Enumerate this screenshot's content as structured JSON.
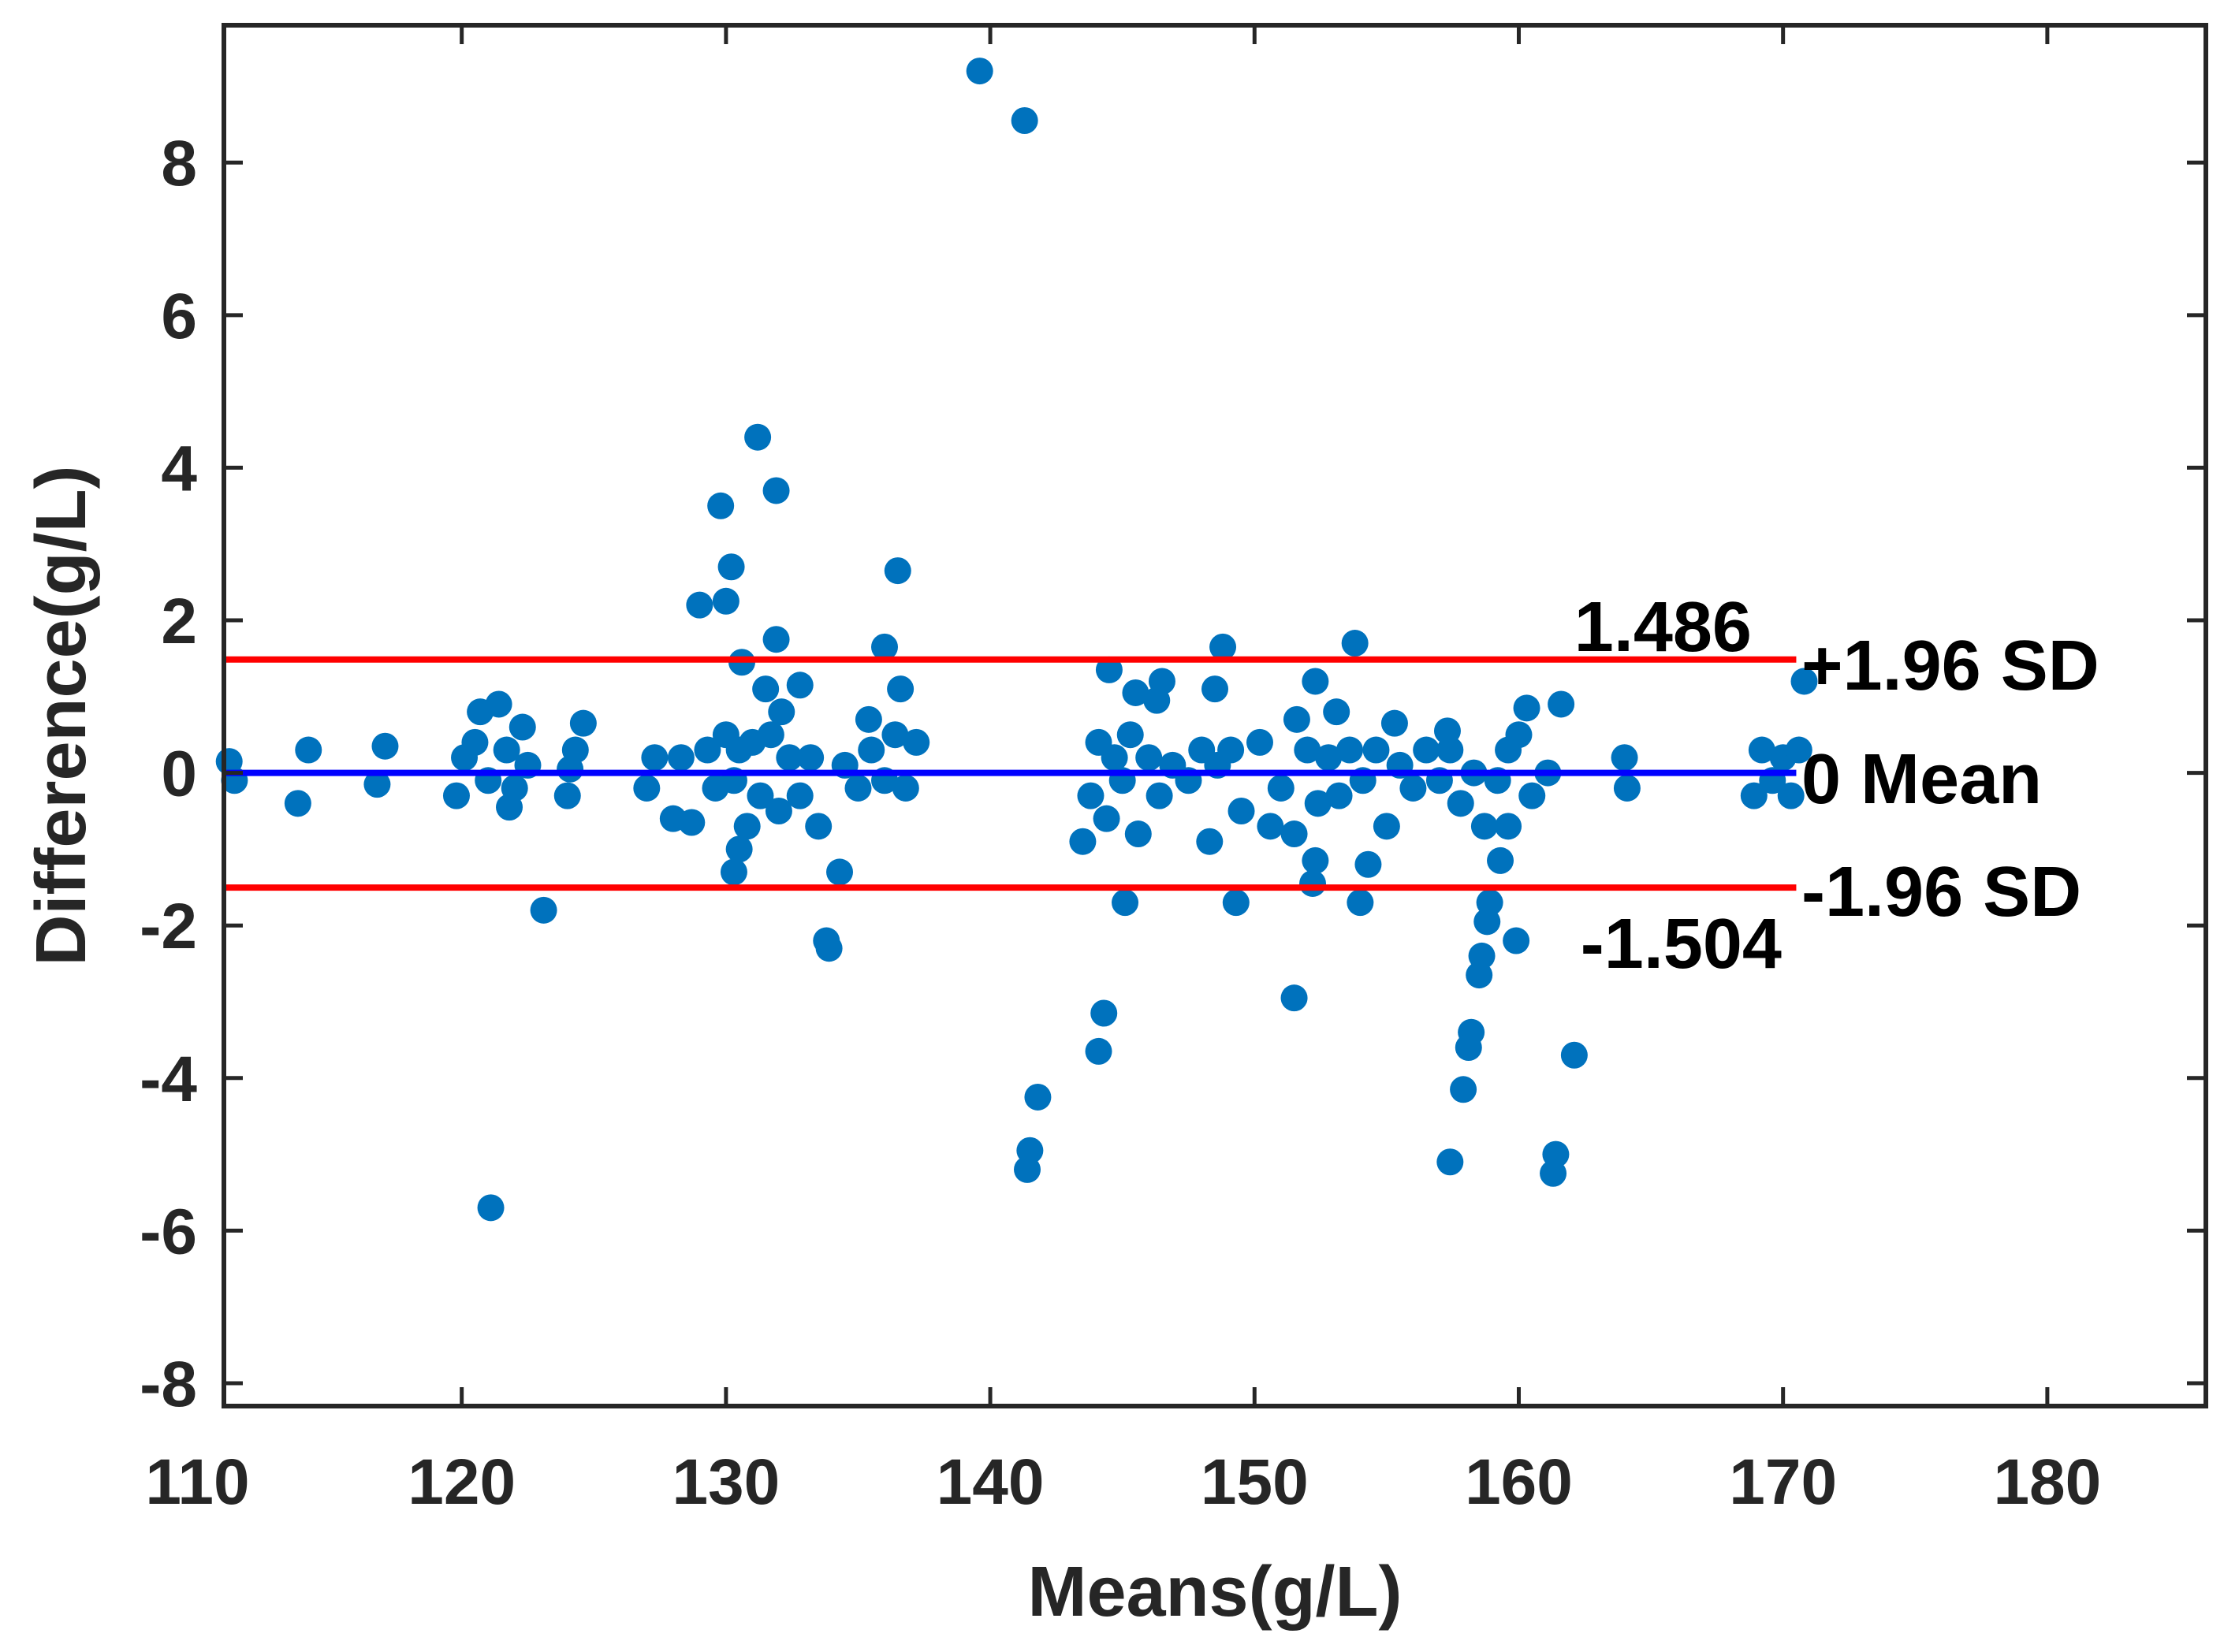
{
  "chart_data": {
    "type": "scatter",
    "title": "",
    "xlabel": "Means(g/L)",
    "ylabel": "Difference(g/L)",
    "xlim": [
      111,
      186
    ],
    "ylim": [
      -8.3,
      9.8
    ],
    "xticks": [
      110,
      120,
      130,
      140,
      150,
      160,
      170,
      180
    ],
    "yticks": [
      -8,
      -6,
      -4,
      -2,
      0,
      2,
      4,
      6,
      8
    ],
    "xtick_labels": [
      "110",
      "120",
      "130",
      "140",
      "150",
      "160",
      "170",
      "180"
    ],
    "ytick_labels": [
      "-8",
      "-6",
      "-4",
      "-2",
      "0",
      "2",
      "4",
      "6",
      "8"
    ],
    "grid": false,
    "colors": {
      "points": "#0072BD",
      "limits": "#FF0000",
      "mean": "#0000FF",
      "axes": "#262626"
    },
    "reference_lines": [
      {
        "name": "upper_limit",
        "y": 1.486,
        "x_range": [
          111,
          170.5
        ],
        "color": "#FF0000",
        "value_label": "1.486",
        "side_label": "+1.96 SD"
      },
      {
        "name": "mean",
        "y": 0,
        "x_range": [
          111,
          170.5
        ],
        "color": "#0000FF",
        "value_label": "",
        "side_label": "0 Mean"
      },
      {
        "name": "lower_limit",
        "y": -1.504,
        "x_range": [
          111,
          170.5
        ],
        "color": "#FF0000",
        "value_label": "-1.504",
        "side_label": "-1.96 SD"
      }
    ],
    "series": [
      {
        "name": "Differences",
        "points": [
          [
            139.6,
            9.2
          ],
          [
            141.3,
            8.55
          ],
          [
            131.2,
            4.4
          ],
          [
            131.9,
            3.7
          ],
          [
            129.8,
            3.5
          ],
          [
            130.2,
            2.7
          ],
          [
            136.5,
            2.65
          ],
          [
            129.0,
            2.2
          ],
          [
            130.0,
            2.25
          ],
          [
            131.9,
            1.75
          ],
          [
            136.0,
            1.65
          ],
          [
            148.8,
            1.65
          ],
          [
            153.8,
            1.7
          ],
          [
            130.6,
            1.45
          ],
          [
            144.5,
            1.35
          ],
          [
            146.5,
            1.2
          ],
          [
            170.8,
            1.2
          ],
          [
            131.5,
            1.1
          ],
          [
            132.8,
            1.15
          ],
          [
            136.6,
            1.1
          ],
          [
            152.3,
            1.2
          ],
          [
            148.5,
            1.1
          ],
          [
            145.5,
            1.05
          ],
          [
            146.3,
            0.95
          ],
          [
            161.6,
            0.9
          ],
          [
            160.3,
            0.85
          ],
          [
            121.4,
            0.9
          ],
          [
            120.7,
            0.8
          ],
          [
            135.4,
            0.7
          ],
          [
            122.3,
            0.6
          ],
          [
            124.6,
            0.65
          ],
          [
            151.6,
            0.7
          ],
          [
            153.1,
            0.8
          ],
          [
            155.3,
            0.65
          ],
          [
            157.3,
            0.55
          ],
          [
            111.2,
            0.15
          ],
          [
            111.4,
            -0.1
          ],
          [
            114.2,
            0.3
          ],
          [
            113.8,
            -0.4
          ],
          [
            117.1,
            0.35
          ],
          [
            116.8,
            -0.15
          ],
          [
            119.8,
            -0.3
          ],
          [
            120.1,
            0.2
          ],
          [
            120.5,
            0.4
          ],
          [
            121.0,
            -0.1
          ],
          [
            121.7,
            0.3
          ],
          [
            122.0,
            -0.2
          ],
          [
            122.5,
            0.1
          ],
          [
            121.8,
            -0.45
          ],
          [
            124.0,
            -0.3
          ],
          [
            124.3,
            0.3
          ],
          [
            124.1,
            0.05
          ],
          [
            123.1,
            -1.8
          ],
          [
            121.1,
            -5.7
          ],
          [
            127.0,
            -0.2
          ],
          [
            127.3,
            0.2
          ],
          [
            128.0,
            -0.6
          ],
          [
            128.3,
            0.2
          ],
          [
            128.7,
            -0.65
          ],
          [
            129.3,
            0.3
          ],
          [
            129.6,
            -0.2
          ],
          [
            130.0,
            0.5
          ],
          [
            130.3,
            -0.1
          ],
          [
            130.5,
            0.3
          ],
          [
            130.3,
            -1.3
          ],
          [
            130.5,
            -1.0
          ],
          [
            130.8,
            -0.7
          ],
          [
            131.0,
            0.4
          ],
          [
            131.3,
            -0.3
          ],
          [
            131.7,
            0.5
          ],
          [
            132.0,
            -0.5
          ],
          [
            132.4,
            0.2
          ],
          [
            132.8,
            -0.3
          ],
          [
            133.2,
            0.2
          ],
          [
            133.5,
            -0.7
          ],
          [
            132.1,
            0.8
          ],
          [
            133.9,
            -2.3
          ],
          [
            134.3,
            -1.3
          ],
          [
            134.5,
            0.1
          ],
          [
            135.0,
            -0.2
          ],
          [
            135.5,
            0.3
          ],
          [
            136.0,
            -0.1
          ],
          [
            136.4,
            0.5
          ],
          [
            136.8,
            -0.2
          ],
          [
            137.2,
            0.4
          ],
          [
            133.8,
            -2.2
          ],
          [
            143.5,
            -0.9
          ],
          [
            143.8,
            -0.3
          ],
          [
            144.1,
            0.4
          ],
          [
            144.4,
            -0.6
          ],
          [
            144.7,
            0.2
          ],
          [
            145.0,
            -0.1
          ],
          [
            145.3,
            0.5
          ],
          [
            145.6,
            -0.8
          ],
          [
            146.0,
            0.2
          ],
          [
            146.4,
            -0.3
          ],
          [
            146.9,
            0.1
          ],
          [
            147.5,
            -0.1
          ],
          [
            148.0,
            0.3
          ],
          [
            148.3,
            -0.9
          ],
          [
            148.6,
            0.1
          ],
          [
            149.1,
            0.3
          ],
          [
            149.5,
            -0.5
          ],
          [
            150.2,
            0.4
          ],
          [
            150.6,
            -0.7
          ],
          [
            151.0,
            -0.2
          ],
          [
            151.5,
            -0.8
          ],
          [
            152.0,
            0.3
          ],
          [
            152.4,
            -0.4
          ],
          [
            152.8,
            0.2
          ],
          [
            153.2,
            -0.3
          ],
          [
            153.6,
            0.3
          ],
          [
            154.1,
            -0.1
          ],
          [
            154.6,
            0.3
          ],
          [
            155.0,
            -0.7
          ],
          [
            155.5,
            0.1
          ],
          [
            156.0,
            -0.2
          ],
          [
            156.5,
            0.3
          ],
          [
            157.0,
            -0.1
          ],
          [
            157.4,
            0.3
          ],
          [
            157.8,
            -0.4
          ],
          [
            158.3,
            0.0
          ],
          [
            158.7,
            -0.7
          ],
          [
            159.2,
            -0.1
          ],
          [
            159.6,
            0.3
          ],
          [
            160.0,
            0.5
          ],
          [
            160.5,
            -0.3
          ],
          [
            161.1,
            0.0
          ],
          [
            152.3,
            -1.15
          ],
          [
            152.2,
            -1.45
          ],
          [
            154.3,
            -1.2
          ],
          [
            154.0,
            -1.7
          ],
          [
            145.1,
            -1.7
          ],
          [
            149.3,
            -1.7
          ],
          [
            158.9,
            -1.7
          ],
          [
            158.8,
            -1.95
          ],
          [
            159.3,
            -1.15
          ],
          [
            159.6,
            -0.7
          ],
          [
            158.6,
            -2.4
          ],
          [
            158.5,
            -2.65
          ],
          [
            159.9,
            -2.2
          ],
          [
            158.2,
            -3.4
          ],
          [
            158.1,
            -3.6
          ],
          [
            157.9,
            -4.15
          ],
          [
            157.4,
            -5.1
          ],
          [
            151.5,
            -2.95
          ],
          [
            144.3,
            -3.15
          ],
          [
            144.1,
            -3.65
          ],
          [
            141.8,
            -4.25
          ],
          [
            141.5,
            -4.95
          ],
          [
            141.4,
            -5.2
          ],
          [
            162.1,
            -3.7
          ],
          [
            161.4,
            -5.0
          ],
          [
            161.3,
            -5.25
          ],
          [
            164.0,
            0.2
          ],
          [
            164.1,
            -0.2
          ],
          [
            168.9,
            -0.3
          ],
          [
            169.2,
            0.3
          ],
          [
            169.6,
            -0.1
          ],
          [
            170.0,
            0.2
          ],
          [
            170.3,
            -0.3
          ],
          [
            170.6,
            0.3
          ]
        ]
      }
    ]
  }
}
